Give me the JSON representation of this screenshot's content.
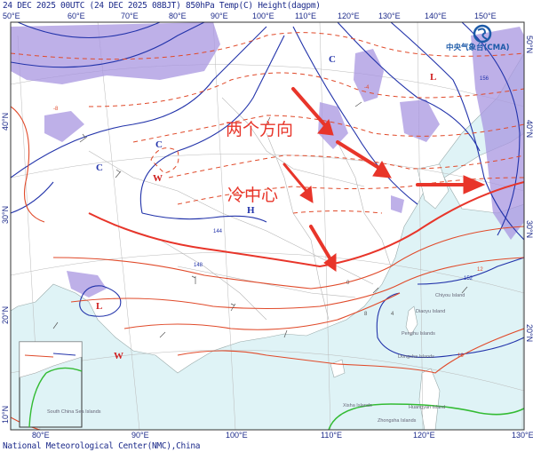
{
  "header": {
    "title": "24 DEC 2025 00UTC  (24 DEC 2025 08BJT) 850hPa Temp(C) Height(dagpm)"
  },
  "footer": {
    "credit": "National Meteorological Center(NMC),China"
  },
  "logo": {
    "text": "中央气象台(CMA)"
  },
  "axes": {
    "top_lon": [
      "50°E",
      "60°E",
      "70°E",
      "80°E",
      "90°E",
      "100°E",
      "110°E",
      "120°E",
      "130°E",
      "140°E",
      "150°E"
    ],
    "bottom_lon": [
      "80°E",
      "90°E",
      "100°E",
      "110°E",
      "120°E",
      "130°E"
    ],
    "left_lat": [
      "40°N",
      "30°N",
      "20°N",
      "10°N"
    ],
    "right_lat": [
      "50°N",
      "40°N",
      "30°N",
      "20°N"
    ]
  },
  "annotations": {
    "two_directions": "两个方向",
    "cold_center": "冷中心"
  },
  "symbols": {
    "cold": "C",
    "warm": "W",
    "high": "H",
    "low": "L"
  },
  "contour_labels": [
    "-8",
    "-4",
    "0",
    "4",
    "8",
    "12",
    "16",
    "144",
    "148",
    "152",
    "156"
  ],
  "islands": [
    "Chiyou Island",
    "Diaoyu Island",
    "Penghu Islands",
    "Dongsha Islands",
    "Xisha Islands",
    "Huangyan Island",
    "Zhongsha Islands",
    "South China Sea Islands"
  ],
  "colors": {
    "height_contour": "#2233aa",
    "temp_contour": "#e04a2a",
    "warm_temp_bold": "#e8352a",
    "shading": "#a896e0",
    "ocean": "#dff3f6",
    "zero_isotherm": "#33bb33",
    "annotation": "#e8352a"
  }
}
